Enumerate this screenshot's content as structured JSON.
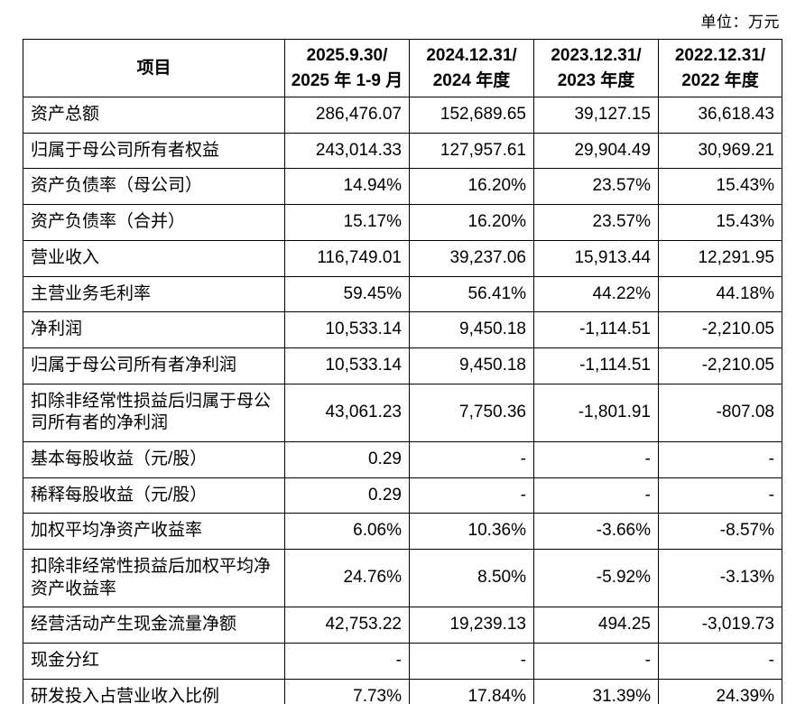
{
  "unit_label": "单位：万元",
  "table": {
    "header": {
      "item": "项目",
      "columns": [
        {
          "line1": "2025.9.30/",
          "line2": "2025 年 1-9 月"
        },
        {
          "line1": "2024.12.31/",
          "line2": "2024 年度"
        },
        {
          "line1": "2023.12.31/",
          "line2": "2023 年度"
        },
        {
          "line1": "2022.12.31/",
          "line2": "2022 年度"
        }
      ]
    },
    "rows": [
      {
        "label": "资产总额",
        "values": [
          "286,476.07",
          "152,689.65",
          "39,127.15",
          "36,618.43"
        ]
      },
      {
        "label": "归属于母公司所有者权益",
        "values": [
          "243,014.33",
          "127,957.61",
          "29,904.49",
          "30,969.21"
        ]
      },
      {
        "label": "资产负债率（母公司）",
        "values": [
          "14.94%",
          "16.20%",
          "23.57%",
          "15.43%"
        ]
      },
      {
        "label": "资产负债率（合并）",
        "values": [
          "15.17%",
          "16.20%",
          "23.57%",
          "15.43%"
        ]
      },
      {
        "label": "营业收入",
        "values": [
          "116,749.01",
          "39,237.06",
          "15,913.44",
          "12,291.95"
        ]
      },
      {
        "label": "主营业务毛利率",
        "values": [
          "59.45%",
          "56.41%",
          "44.22%",
          "44.18%"
        ]
      },
      {
        "label": "净利润",
        "values": [
          "10,533.14",
          "9,450.18",
          "-1,114.51",
          "-2,210.05"
        ]
      },
      {
        "label": "归属于母公司所有者净利润",
        "values": [
          "10,533.14",
          "9,450.18",
          "-1,114.51",
          "-2,210.05"
        ]
      },
      {
        "label": "扣除非经常性损益后归属于母公司所有者的净利润",
        "values": [
          "43,061.23",
          "7,750.36",
          "-1,801.91",
          "-807.08"
        ]
      },
      {
        "label": "基本每股收益（元/股）",
        "values": [
          "0.29",
          "-",
          "-",
          "-"
        ]
      },
      {
        "label": "稀释每股收益（元/股）",
        "values": [
          "0.29",
          "-",
          "-",
          "-"
        ]
      },
      {
        "label": "加权平均净资产收益率",
        "values": [
          "6.06%",
          "10.36%",
          "-3.66%",
          "-8.57%"
        ]
      },
      {
        "label": "扣除非经常性损益后加权平均净资产收益率",
        "values": [
          "24.76%",
          "8.50%",
          "-5.92%",
          "-3.13%"
        ]
      },
      {
        "label": "经营活动产生现金流量净额",
        "values": [
          "42,753.22",
          "19,239.13",
          "494.25",
          "-3,019.73"
        ]
      },
      {
        "label": "现金分红",
        "values": [
          "-",
          "-",
          "-",
          "-"
        ]
      },
      {
        "label": "研发投入占营业收入比例",
        "values": [
          "7.73%",
          "17.84%",
          "31.39%",
          "24.39%"
        ]
      }
    ]
  }
}
